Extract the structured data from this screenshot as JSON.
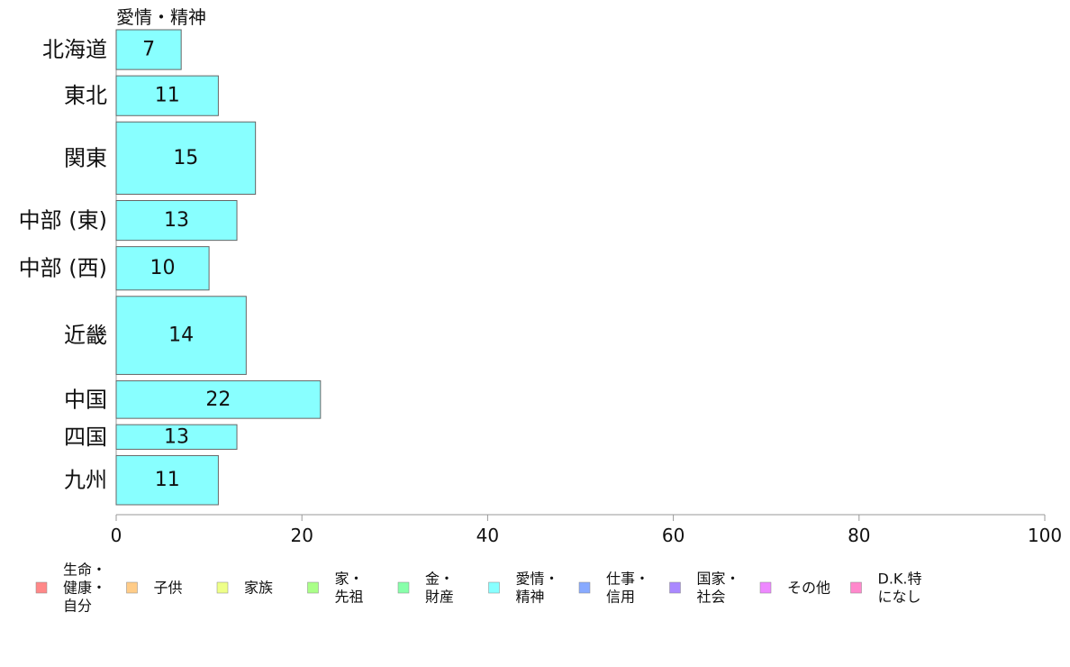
{
  "chart_data": {
    "type": "bar",
    "orientation": "horizontal",
    "series_label": "愛情・精神",
    "categories": [
      "北海道",
      "東北",
      "関東",
      "中部 (東)",
      "中部 (西)",
      "近畿",
      "中国",
      "四国",
      "九州"
    ],
    "values": [
      7,
      11,
      15,
      13,
      10,
      14,
      22,
      13,
      11
    ],
    "data_labels": [
      "7",
      "11",
      "15",
      "13",
      "10",
      "14",
      "22",
      "13",
      "11"
    ],
    "relative_widths": [
      0.55,
      0.55,
      1.0,
      0.55,
      0.6,
      1.08,
      0.52,
      0.34,
      0.68
    ],
    "xlim": [
      0,
      100
    ],
    "xticks": [
      "0",
      "20",
      "40",
      "60",
      "80",
      "100"
    ],
    "grid": false,
    "bar_color": "#88ffff",
    "legend_position": "bottom",
    "legend": [
      {
        "label_lines": [
          "生命・",
          "健康・",
          "自分"
        ],
        "color": "#ff8888"
      },
      {
        "label_lines": [
          "子供"
        ],
        "color": "#ffcc88"
      },
      {
        "label_lines": [
          "家族"
        ],
        "color": "#eeff88"
      },
      {
        "label_lines": [
          "家・",
          "先祖"
        ],
        "color": "#aaff88"
      },
      {
        "label_lines": [
          "金・",
          "財産"
        ],
        "color": "#88ffaa"
      },
      {
        "label_lines": [
          "愛情・",
          "精神"
        ],
        "color": "#88ffff"
      },
      {
        "label_lines": [
          "仕事・",
          "信用"
        ],
        "color": "#88aaff"
      },
      {
        "label_lines": [
          "国家・",
          "社会"
        ],
        "color": "#aa88ff"
      },
      {
        "label_lines": [
          "その他"
        ],
        "color": "#ee88ff"
      },
      {
        "label_lines": [
          "D.K.特",
          "になし"
        ],
        "color": "#ff88cc"
      }
    ]
  }
}
